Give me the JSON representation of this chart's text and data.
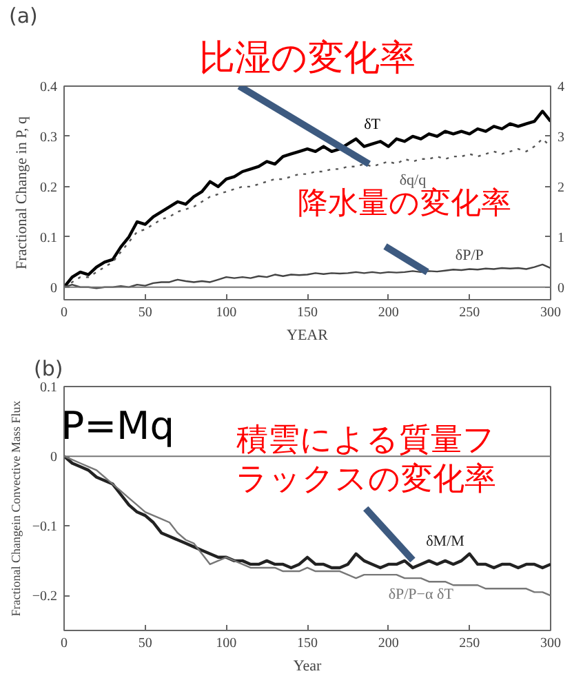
{
  "chart_data": [
    {
      "type": "line",
      "title": "(a)",
      "xlabel": "YEAR",
      "ylabel": "Fractional Change in P, q",
      "x": [
        0,
        5,
        10,
        15,
        20,
        25,
        30,
        35,
        40,
        45,
        50,
        55,
        60,
        65,
        70,
        75,
        80,
        85,
        90,
        95,
        100,
        105,
        110,
        115,
        120,
        125,
        130,
        135,
        140,
        145,
        150,
        155,
        160,
        165,
        170,
        175,
        180,
        185,
        190,
        195,
        200,
        205,
        210,
        215,
        220,
        225,
        230,
        235,
        240,
        245,
        250,
        255,
        260,
        265,
        270,
        275,
        280,
        285,
        290,
        295,
        300
      ],
      "series": [
        {
          "name": "δT",
          "color": "#000000",
          "axis": "y2",
          "values": [
            0.0,
            0.2,
            0.3,
            0.25,
            0.4,
            0.5,
            0.55,
            0.8,
            1.0,
            1.3,
            1.25,
            1.4,
            1.5,
            1.6,
            1.7,
            1.65,
            1.8,
            1.9,
            2.1,
            2.0,
            2.15,
            2.2,
            2.3,
            2.35,
            2.4,
            2.5,
            2.45,
            2.6,
            2.65,
            2.7,
            2.75,
            2.7,
            2.8,
            2.7,
            2.75,
            2.85,
            2.95,
            2.8,
            2.85,
            2.9,
            2.8,
            2.95,
            2.9,
            3.0,
            2.95,
            3.05,
            3.0,
            3.1,
            3.05,
            3.1,
            3.05,
            3.15,
            3.1,
            3.2,
            3.15,
            3.25,
            3.2,
            3.25,
            3.3,
            3.5,
            3.3
          ]
        },
        {
          "name": "δq/q",
          "color": "#555555",
          "line_style": "dotted",
          "values": [
            0,
            0.01,
            0.02,
            0.02,
            0.03,
            0.04,
            0.05,
            0.07,
            0.09,
            0.11,
            0.115,
            0.125,
            0.135,
            0.14,
            0.15,
            0.155,
            0.16,
            0.17,
            0.18,
            0.185,
            0.19,
            0.195,
            0.2,
            0.2,
            0.205,
            0.21,
            0.215,
            0.215,
            0.22,
            0.225,
            0.225,
            0.23,
            0.23,
            0.235,
            0.235,
            0.24,
            0.24,
            0.245,
            0.24,
            0.245,
            0.25,
            0.245,
            0.255,
            0.25,
            0.255,
            0.255,
            0.26,
            0.255,
            0.26,
            0.26,
            0.265,
            0.26,
            0.265,
            0.27,
            0.265,
            0.27,
            0.275,
            0.27,
            0.28,
            0.295,
            0.28
          ]
        },
        {
          "name": "δP/P",
          "color": "#444444",
          "values": [
            0,
            0.005,
            0,
            0,
            -0.002,
            0,
            0,
            0.002,
            0.0,
            0.005,
            0.003,
            0.008,
            0.01,
            0.01,
            0.015,
            0.012,
            0.01,
            0.012,
            0.01,
            0.015,
            0.02,
            0.018,
            0.02,
            0.018,
            0.022,
            0.02,
            0.025,
            0.022,
            0.025,
            0.024,
            0.025,
            0.028,
            0.026,
            0.028,
            0.027,
            0.028,
            0.03,
            0.028,
            0.03,
            0.028,
            0.03,
            0.029,
            0.03,
            0.032,
            0.03,
            0.032,
            0.031,
            0.033,
            0.035,
            0.034,
            0.036,
            0.035,
            0.037,
            0.036,
            0.038,
            0.037,
            0.038,
            0.036,
            0.04,
            0.045,
            0.038
          ]
        }
      ],
      "xlim": [
        0,
        300
      ],
      "xticks": [
        0,
        50,
        100,
        150,
        200,
        250,
        300
      ],
      "ylim": [
        -0.025,
        0.4
      ],
      "yticks": [
        0,
        0.1,
        0.2,
        0.3,
        0.4
      ],
      "y2lim": [
        -0.25,
        4
      ],
      "y2ticks": [
        0,
        1,
        2,
        3,
        4
      ],
      "ref_lines": [
        {
          "axis": "y",
          "value": 0
        }
      ],
      "line_style": "solid",
      "grid": false,
      "annotations": [
        {
          "text": "比湿の変化率",
          "x": 188,
          "y": 0.245
        },
        {
          "text": "降水量の変化率",
          "x": 224,
          "y": 0.03
        }
      ]
    },
    {
      "type": "line",
      "title": "(b)",
      "xlabel": "Year",
      "ylabel": "Fractional Changein Convective Mass Flux",
      "x": [
        0,
        5,
        10,
        15,
        20,
        25,
        30,
        35,
        40,
        45,
        50,
        55,
        60,
        65,
        70,
        75,
        80,
        85,
        90,
        95,
        100,
        105,
        110,
        115,
        120,
        125,
        130,
        135,
        140,
        145,
        150,
        155,
        160,
        165,
        170,
        175,
        180,
        185,
        190,
        195,
        200,
        205,
        210,
        215,
        220,
        225,
        230,
        235,
        240,
        245,
        250,
        255,
        260,
        265,
        270,
        275,
        280,
        285,
        290,
        295,
        300
      ],
      "series": [
        {
          "name": "δM/M",
          "color": "#222222",
          "values": [
            0,
            -0.01,
            -0.015,
            -0.02,
            -0.03,
            -0.035,
            -0.04,
            -0.055,
            -0.07,
            -0.08,
            -0.085,
            -0.095,
            -0.11,
            -0.115,
            -0.12,
            -0.125,
            -0.13,
            -0.135,
            -0.14,
            -0.145,
            -0.145,
            -0.15,
            -0.15,
            -0.155,
            -0.155,
            -0.15,
            -0.155,
            -0.155,
            -0.16,
            -0.155,
            -0.145,
            -0.155,
            -0.155,
            -0.16,
            -0.16,
            -0.155,
            -0.14,
            -0.15,
            -0.155,
            -0.16,
            -0.155,
            -0.155,
            -0.15,
            -0.16,
            -0.155,
            -0.15,
            -0.155,
            -0.15,
            -0.155,
            -0.15,
            -0.14,
            -0.155,
            -0.155,
            -0.16,
            -0.155,
            -0.155,
            -0.16,
            -0.155,
            -0.155,
            -0.16,
            -0.155
          ]
        },
        {
          "name": "δP/P−α δT",
          "color": "#777777",
          "values": [
            0,
            -0.005,
            -0.01,
            -0.015,
            -0.02,
            -0.03,
            -0.04,
            -0.05,
            -0.06,
            -0.07,
            -0.08,
            -0.085,
            -0.09,
            -0.095,
            -0.11,
            -0.12,
            -0.125,
            -0.14,
            -0.155,
            -0.15,
            -0.145,
            -0.15,
            -0.155,
            -0.16,
            -0.16,
            -0.16,
            -0.16,
            -0.165,
            -0.165,
            -0.165,
            -0.16,
            -0.165,
            -0.165,
            -0.165,
            -0.165,
            -0.17,
            -0.175,
            -0.17,
            -0.17,
            -0.17,
            -0.17,
            -0.17,
            -0.175,
            -0.175,
            -0.175,
            -0.18,
            -0.18,
            -0.18,
            -0.185,
            -0.185,
            -0.185,
            -0.185,
            -0.19,
            -0.19,
            -0.19,
            -0.19,
            -0.19,
            -0.19,
            -0.195,
            -0.195,
            -0.2
          ]
        }
      ],
      "xlim": [
        0,
        300
      ],
      "xticks": [
        0,
        50,
        100,
        150,
        200,
        250,
        300
      ],
      "ylim": [
        -0.25,
        0.1
      ],
      "yticks": [
        -0.2,
        -0.1,
        0,
        0.1
      ],
      "ref_lines": [
        {
          "axis": "y",
          "value": 0
        }
      ],
      "line_style": "solid",
      "grid": false,
      "annotations": [
        "P=Mq",
        {
          "text": "積雲による質量フラックスの変化率",
          "x": 215,
          "y": -0.149
        }
      ]
    }
  ]
}
